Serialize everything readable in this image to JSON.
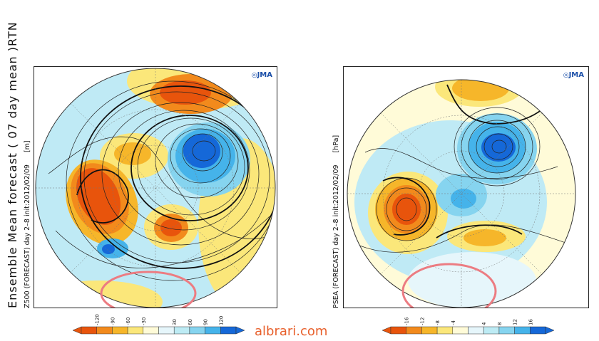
{
  "left_panel": {
    "title": "Ensemble Mean forecast ( 07 day mean )RTN",
    "subtitle": "Z500 (FORECAST) day 2–8 init:2012/02/09",
    "unit": "[m]",
    "logo": "JMA",
    "colorbar": {
      "ticks": [
        "-120",
        "-90",
        "-60",
        "-30",
        "30",
        "60",
        "90",
        "120"
      ],
      "colors": [
        "#e8540c",
        "#f28a1c",
        "#f6b62a",
        "#fbe77a",
        "#fffbd8",
        "#e6f6fb",
        "#bdebf4",
        "#86d4ef",
        "#45b3ea",
        "#1568d8"
      ]
    }
  },
  "right_panel": {
    "subtitle": "PSEA (FORECAST) day 2–8 init:2012/02/09",
    "unit": "[hPa]",
    "logo": "JMA",
    "colorbar": {
      "ticks": [
        "-16",
        "-12",
        "-8",
        "-4",
        "4",
        "8",
        "12",
        "16"
      ],
      "colors": [
        "#e8540c",
        "#f28a1c",
        "#f6b62a",
        "#fbe77a",
        "#fffbd8",
        "#e6f6fb",
        "#bdebf4",
        "#86d4ef",
        "#45b3ea",
        "#1568d8"
      ]
    }
  },
  "watermark": "albrari.com",
  "highlight_color": "#ec7c82"
}
